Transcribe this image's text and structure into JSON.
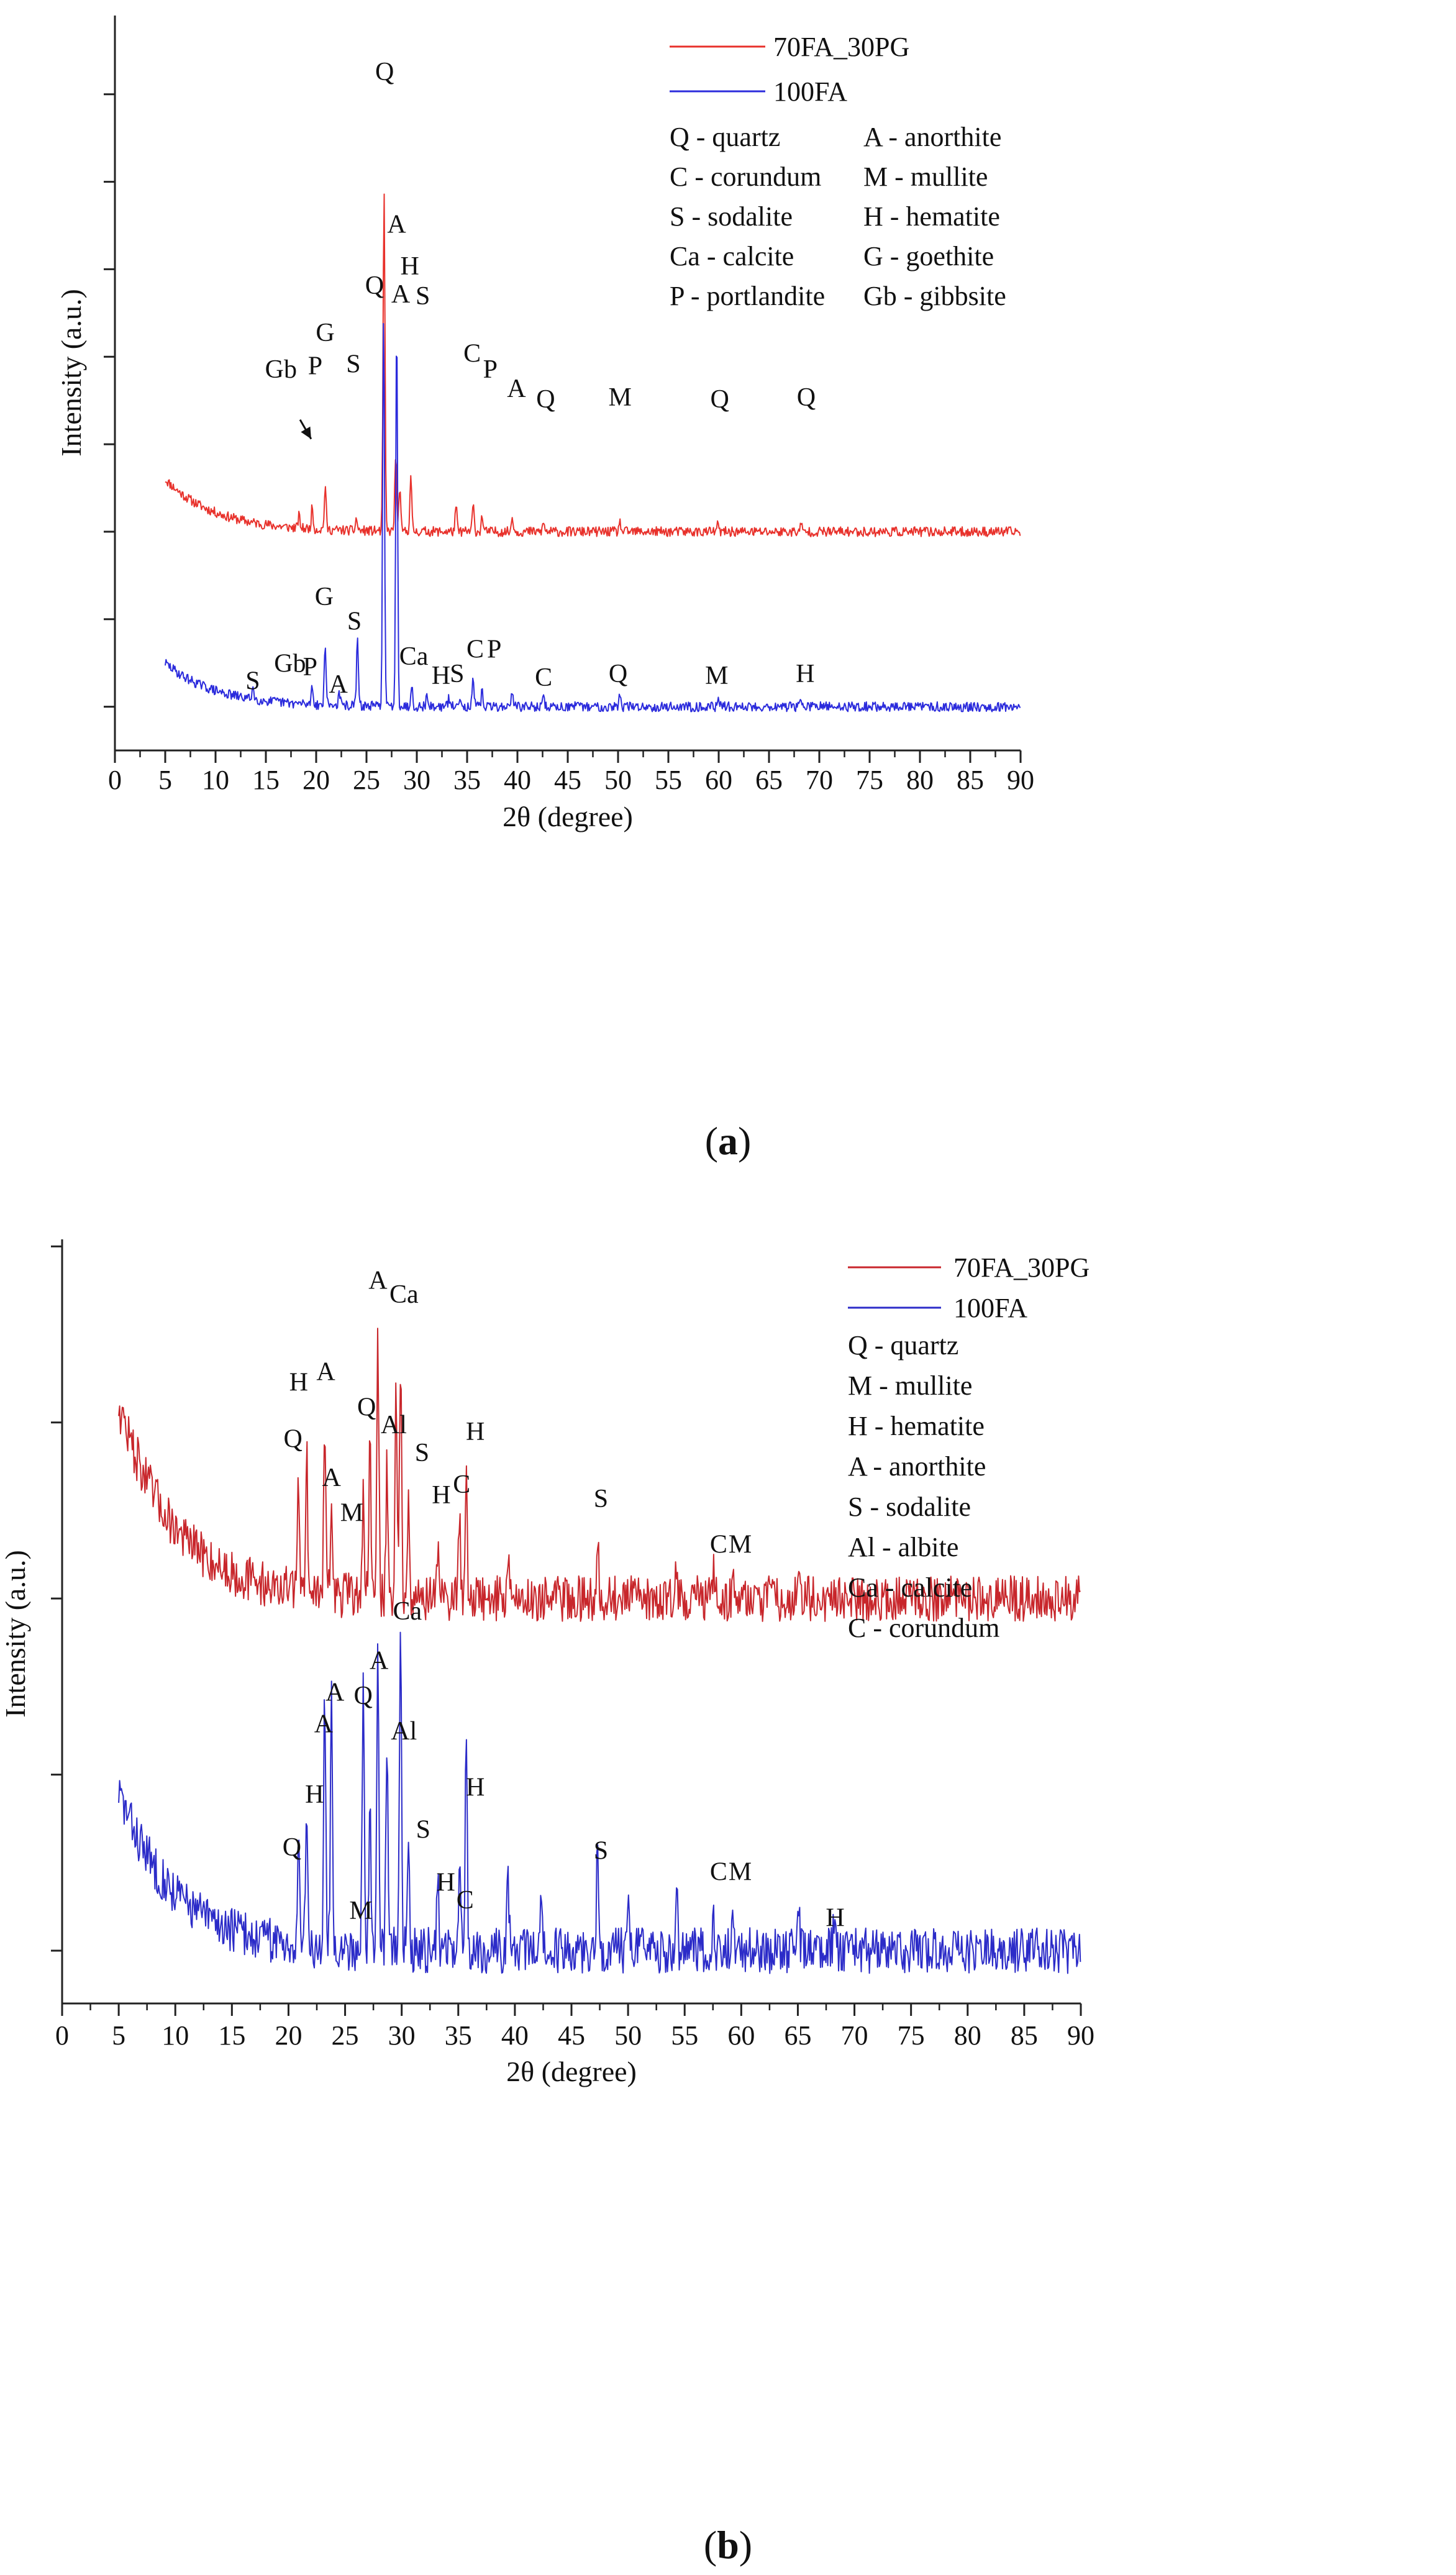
{
  "chart_data": [
    {
      "type": "line",
      "panel": "a",
      "panel_label": "a",
      "xlabel": "2θ (degree)",
      "ylabel": "Intensity (a.u.)",
      "xlim": [
        0,
        90
      ],
      "x_ticks": [
        0,
        5,
        10,
        15,
        20,
        25,
        30,
        35,
        40,
        45,
        50,
        55,
        60,
        65,
        70,
        75,
        80,
        85,
        90
      ],
      "y_tick_labels": "none",
      "legend": {
        "position": "top-right",
        "entries": [
          {
            "name": "70FA_30PG",
            "color": "#e8312b"
          },
          {
            "name": "100FA",
            "color": "#2b2bdc"
          }
        ],
        "phases_left": [
          "Q - quartz",
          "C - corundum",
          "S - sodalite",
          "Ca - calcite",
          "P - portlandite"
        ],
        "phases_right": [
          "A - anorthite",
          "M - mullite",
          "H - hematite",
          "G - goethite",
          "Gb - gibbsite"
        ]
      },
      "series": [
        {
          "name": "70FA_30PG",
          "color": "#e8312b",
          "baseline": 1.0,
          "noise": 0.028,
          "decay": 0.3,
          "seed": 11,
          "peaks": [
            [
              18.3,
              0.07
            ],
            [
              19.6,
              0.12
            ],
            [
              20.9,
              0.24
            ],
            [
              24.0,
              0.07
            ],
            [
              26.7,
              0.2
            ],
            [
              26.75,
              1.75
            ],
            [
              27.9,
              0.44
            ],
            [
              28.3,
              0.25
            ],
            [
              29.4,
              0.31
            ],
            [
              33.9,
              0.14
            ],
            [
              35.6,
              0.15
            ],
            [
              36.5,
              0.09
            ],
            [
              39.5,
              0.09
            ],
            [
              42.6,
              0.05
            ],
            [
              50.2,
              0.05
            ],
            [
              59.9,
              0.04
            ],
            [
              68.2,
              0.04
            ]
          ]
        },
        {
          "name": "100FA",
          "color": "#2b2bdc",
          "baseline": 0.0,
          "noise": 0.028,
          "decay": 0.25,
          "seed": 29,
          "peaks": [
            [
              13.7,
              0.07
            ],
            [
              19.6,
              0.11
            ],
            [
              20.9,
              0.34
            ],
            [
              22.3,
              0.07
            ],
            [
              24.1,
              0.38
            ],
            [
              26.7,
              2.25
            ],
            [
              28.0,
              2.2
            ],
            [
              29.5,
              0.12
            ],
            [
              31.0,
              0.06
            ],
            [
              33.2,
              0.05
            ],
            [
              34.3,
              0.07
            ],
            [
              35.6,
              0.15
            ],
            [
              36.5,
              0.09
            ],
            [
              39.5,
              0.1
            ],
            [
              42.6,
              0.05
            ],
            [
              50.2,
              0.07
            ],
            [
              60.0,
              0.05
            ],
            [
              68.2,
              0.05
            ]
          ]
        }
      ],
      "annotations": [
        {
          "text": "Q",
          "x": 26.8,
          "y": 3.58
        },
        {
          "text": "A",
          "x": 28.0,
          "y": 2.71
        },
        {
          "text": "H",
          "x": 29.3,
          "y": 2.47
        },
        {
          "text": "S",
          "x": 30.6,
          "y": 2.3
        },
        {
          "text": "G",
          "x": 20.9,
          "y": 2.09
        },
        {
          "text": "Gb",
          "x": 16.5,
          "y": 1.88
        },
        {
          "text": "P",
          "x": 19.9,
          "y": 1.9
        },
        {
          "text": "S",
          "x": 23.7,
          "y": 1.91
        },
        {
          "text": "C",
          "x": 35.5,
          "y": 1.97
        },
        {
          "text": "P",
          "x": 37.3,
          "y": 1.88
        },
        {
          "text": "A",
          "x": 39.9,
          "y": 1.77
        },
        {
          "text": "Q",
          "x": 42.8,
          "y": 1.71
        },
        {
          "text": "M",
          "x": 50.2,
          "y": 1.72
        },
        {
          "text": "Q",
          "x": 60.1,
          "y": 1.71
        },
        {
          "text": "Q",
          "x": 68.7,
          "y": 1.72
        },
        {
          "text": "Q",
          "x": 25.8,
          "y": 2.36
        },
        {
          "text": "A",
          "x": 28.4,
          "y": 2.31
        },
        {
          "text": "G",
          "x": 20.8,
          "y": 0.58
        },
        {
          "text": "S",
          "x": 23.8,
          "y": 0.44
        },
        {
          "text": "S",
          "x": 13.7,
          "y": 0.1
        },
        {
          "text": "Gb",
          "x": 17.4,
          "y": 0.2
        },
        {
          "text": "P",
          "x": 19.4,
          "y": 0.18
        },
        {
          "text": "A",
          "x": 22.2,
          "y": 0.08
        },
        {
          "text": "Ca",
          "x": 29.7,
          "y": 0.24
        },
        {
          "text": "H",
          "x": 32.4,
          "y": 0.13
        },
        {
          "text": "S",
          "x": 34.0,
          "y": 0.14
        },
        {
          "text": "C",
          "x": 35.8,
          "y": 0.28
        },
        {
          "text": "P",
          "x": 37.7,
          "y": 0.28
        },
        {
          "text": "C",
          "x": 42.6,
          "y": 0.12
        },
        {
          "text": "Q",
          "x": 50.0,
          "y": 0.14
        },
        {
          "text": "M",
          "x": 59.8,
          "y": 0.13
        },
        {
          "text": "H",
          "x": 68.6,
          "y": 0.14
        }
      ],
      "arrows": [
        {
          "from": [
            18.4,
            1.64
          ],
          "to": [
            19.5,
            1.53
          ]
        }
      ]
    },
    {
      "type": "line",
      "panel": "b",
      "panel_label": "b",
      "xlabel": "2θ (degree)",
      "ylabel": "Intensity (a.u.)",
      "xlim": [
        0,
        90
      ],
      "x_ticks": [
        0,
        5,
        10,
        15,
        20,
        25,
        30,
        35,
        40,
        45,
        50,
        55,
        60,
        65,
        70,
        75,
        80,
        85,
        90
      ],
      "y_tick_labels": "none",
      "legend": {
        "position": "top-right",
        "entries": [
          {
            "name": "70FA_30PG",
            "color": "#c8262b"
          },
          {
            "name": "100FA",
            "color": "#2b2bc8"
          }
        ],
        "phases": [
          "Q - quartz",
          "M - mullite",
          "H - hematite",
          "A - anorthite",
          "S - sodalite",
          "Al - albite",
          "Ca - calcite",
          "C - corundum"
        ]
      },
      "series": [
        {
          "name": "70FA_30PG",
          "color": "#c8262b",
          "baseline": 1.0,
          "noise": 0.065,
          "decay": 0.55,
          "seed": 47,
          "peaks": [
            [
              20.9,
              0.32
            ],
            [
              21.6,
              0.41
            ],
            [
              23.2,
              0.52
            ],
            [
              23.8,
              0.25
            ],
            [
              26.6,
              0.3
            ],
            [
              27.2,
              0.45
            ],
            [
              27.9,
              0.72
            ],
            [
              28.7,
              0.38
            ],
            [
              29.5,
              0.58
            ],
            [
              29.9,
              0.66
            ],
            [
              30.6,
              0.32
            ],
            [
              33.2,
              0.16
            ],
            [
              35.1,
              0.24
            ],
            [
              35.7,
              0.36
            ],
            [
              39.4,
              0.14
            ],
            [
              47.3,
              0.2
            ],
            [
              54.3,
              0.08
            ],
            [
              57.5,
              0.08
            ],
            [
              59.3,
              0.08
            ],
            [
              65.1,
              0.07
            ]
          ]
        },
        {
          "name": "100FA",
          "color": "#2b2bc8",
          "baseline": 0.0,
          "noise": 0.065,
          "decay": 0.45,
          "seed": 83,
          "peaks": [
            [
              20.9,
              0.32
            ],
            [
              21.6,
              0.42
            ],
            [
              23.2,
              0.72
            ],
            [
              23.8,
              0.72
            ],
            [
              26.6,
              0.78
            ],
            [
              27.2,
              0.4
            ],
            [
              27.9,
              0.85
            ],
            [
              28.7,
              0.62
            ],
            [
              29.9,
              0.98
            ],
            [
              30.6,
              0.36
            ],
            [
              33.2,
              0.2
            ],
            [
              35.1,
              0.22
            ],
            [
              35.7,
              0.6
            ],
            [
              39.4,
              0.2
            ],
            [
              42.3,
              0.16
            ],
            [
              47.3,
              0.3
            ],
            [
              50.0,
              0.12
            ],
            [
              54.3,
              0.16
            ],
            [
              57.5,
              0.1
            ],
            [
              59.2,
              0.1
            ],
            [
              65.1,
              0.1
            ],
            [
              68.2,
              0.08
            ]
          ]
        }
      ],
      "annotations": [
        {
          "text": "A",
          "x": 27.9,
          "y": 1.88
        },
        {
          "text": "Ca",
          "x": 30.2,
          "y": 1.84
        },
        {
          "text": "H",
          "x": 20.9,
          "y": 1.59
        },
        {
          "text": "A",
          "x": 23.3,
          "y": 1.62
        },
        {
          "text": "Q",
          "x": 26.9,
          "y": 1.52
        },
        {
          "text": "Al",
          "x": 29.3,
          "y": 1.47
        },
        {
          "text": "Q",
          "x": 20.4,
          "y": 1.43
        },
        {
          "text": "S",
          "x": 31.8,
          "y": 1.39
        },
        {
          "text": "H",
          "x": 36.5,
          "y": 1.45
        },
        {
          "text": "A",
          "x": 23.8,
          "y": 1.32
        },
        {
          "text": "H",
          "x": 33.5,
          "y": 1.27
        },
        {
          "text": "C",
          "x": 35.3,
          "y": 1.3
        },
        {
          "text": "M",
          "x": 25.6,
          "y": 1.22
        },
        {
          "text": "S",
          "x": 47.6,
          "y": 1.26
        },
        {
          "text": "C",
          "x": 58.0,
          "y": 1.13
        },
        {
          "text": "M",
          "x": 59.9,
          "y": 1.13
        },
        {
          "text": "Ca",
          "x": 30.5,
          "y": 0.94
        },
        {
          "text": "A",
          "x": 28.0,
          "y": 0.8
        },
        {
          "text": "A",
          "x": 24.1,
          "y": 0.71
        },
        {
          "text": "Q",
          "x": 26.6,
          "y": 0.7
        },
        {
          "text": "A",
          "x": 23.1,
          "y": 0.62
        },
        {
          "text": "Al",
          "x": 30.2,
          "y": 0.6
        },
        {
          "text": "H",
          "x": 22.3,
          "y": 0.42
        },
        {
          "text": "H",
          "x": 36.5,
          "y": 0.44
        },
        {
          "text": "S",
          "x": 31.9,
          "y": 0.32
        },
        {
          "text": "Q",
          "x": 20.3,
          "y": 0.27
        },
        {
          "text": "H",
          "x": 33.9,
          "y": 0.17
        },
        {
          "text": "C",
          "x": 35.6,
          "y": 0.12
        },
        {
          "text": "M",
          "x": 26.4,
          "y": 0.09
        },
        {
          "text": "S",
          "x": 47.6,
          "y": 0.26
        },
        {
          "text": "C",
          "x": 58.0,
          "y": 0.2
        },
        {
          "text": "M",
          "x": 59.9,
          "y": 0.2
        },
        {
          "text": "H",
          "x": 68.3,
          "y": 0.07
        }
      ],
      "arrows": []
    }
  ]
}
